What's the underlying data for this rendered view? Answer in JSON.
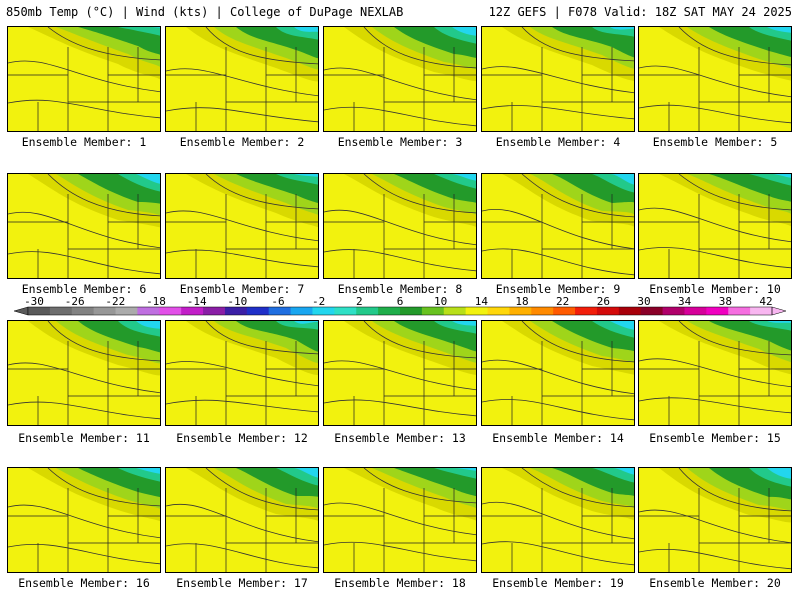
{
  "header": {
    "left": "850mb Temp (°C) | Wind (kts) | College of DuPage NEXLAB",
    "right": "12Z GEFS | F078 Valid: 18Z SAT MAY 24 2025"
  },
  "panels": [
    {
      "label": "Ensemble Member: 1"
    },
    {
      "label": "Ensemble Member: 2"
    },
    {
      "label": "Ensemble Member: 3"
    },
    {
      "label": "Ensemble Member: 4"
    },
    {
      "label": "Ensemble Member: 5"
    },
    {
      "label": "Ensemble Member: 6"
    },
    {
      "label": "Ensemble Member: 7"
    },
    {
      "label": "Ensemble Member: 8"
    },
    {
      "label": "Ensemble Member: 9"
    },
    {
      "label": "Ensemble Member: 10"
    },
    {
      "label": "Ensemble Member: 11"
    },
    {
      "label": "Ensemble Member: 12"
    },
    {
      "label": "Ensemble Member: 13"
    },
    {
      "label": "Ensemble Member: 14"
    },
    {
      "label": "Ensemble Member: 15"
    },
    {
      "label": "Ensemble Member: 16"
    },
    {
      "label": "Ensemble Member: 17"
    },
    {
      "label": "Ensemble Member: 18"
    },
    {
      "label": "Ensemble Member: 19"
    },
    {
      "label": "Ensemble Member: 20"
    }
  ],
  "colorbar": {
    "ticks": [
      "-30",
      "-26",
      "-22",
      "-18",
      "-14",
      "-10",
      "-6",
      "-2",
      "2",
      "6",
      "10",
      "14",
      "18",
      "22",
      "26",
      "30",
      "34",
      "38",
      "42"
    ],
    "colors": [
      "#5a5a5a",
      "#6e6e6e",
      "#828282",
      "#979797",
      "#ababab",
      "#bf6fe0",
      "#e24fe8",
      "#c21ec8",
      "#8a1ea6",
      "#3b1fa6",
      "#1f2fc8",
      "#1f6ee0",
      "#19a6f0",
      "#22d6ee",
      "#2ee0c6",
      "#22c98a",
      "#1fae4a",
      "#239a2a",
      "#68c21f",
      "#b8df19",
      "#f2f20e",
      "#ffd70a",
      "#ffb000",
      "#ff8a00",
      "#ff5a00",
      "#f21e0a",
      "#d40a0a",
      "#a8000a",
      "#8a0028",
      "#b0006a",
      "#d6009a",
      "#f000c0",
      "#f56ee0",
      "#f8b6f0"
    ]
  }
}
